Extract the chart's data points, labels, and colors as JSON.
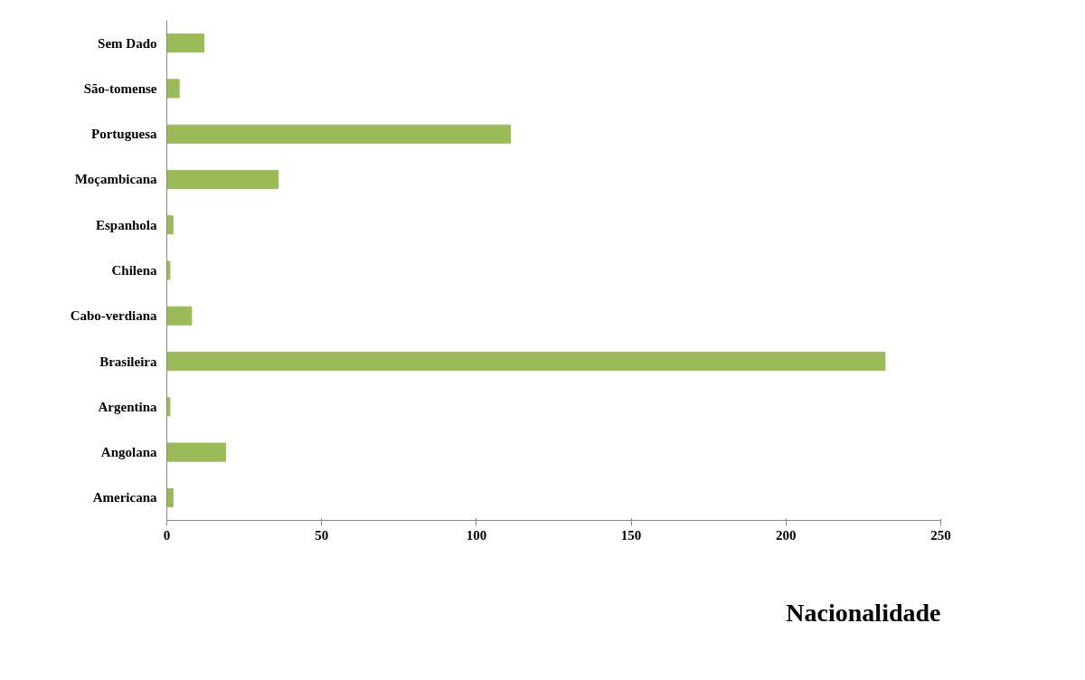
{
  "chart_data": {
    "type": "bar",
    "orientation": "horizontal",
    "title": "Nacionalidade",
    "categories": [
      "Sem Dado",
      "São-tomense",
      "Portuguesa",
      "Moçambicana",
      "Espanhola",
      "Chilena",
      "Cabo-verdiana",
      "Brasileira",
      "Argentina",
      "Angolana",
      "Americana"
    ],
    "values": [
      12,
      4,
      111,
      36,
      2,
      1,
      8,
      232,
      1,
      19,
      2
    ],
    "color": "#9bbb59",
    "xlim": [
      0,
      250
    ],
    "xticks": [
      0,
      50,
      100,
      150,
      200,
      250
    ],
    "grid": false
  }
}
